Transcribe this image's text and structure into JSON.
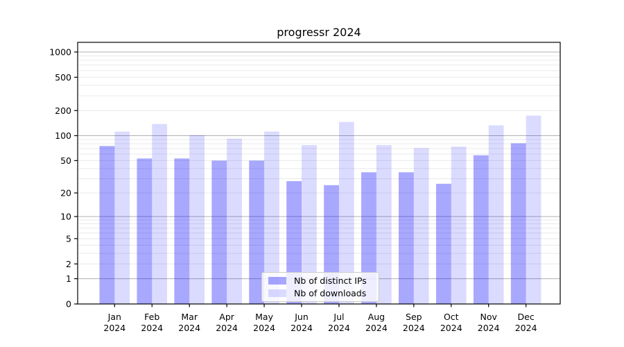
{
  "chart_data": {
    "type": "bar",
    "title": "progressr 2024",
    "categories": [
      "Jan",
      "Feb",
      "Mar",
      "Apr",
      "May",
      "Jun",
      "Jul",
      "Aug",
      "Sep",
      "Oct",
      "Nov",
      "Dec"
    ],
    "year": "2024",
    "series": [
      {
        "name": "Nb of distinct IPs",
        "color": "rgba(0,0,255,0.34)",
        "values": [
          75,
          53,
          53,
          50,
          50,
          28,
          25,
          36,
          36,
          26,
          58,
          81
        ]
      },
      {
        "name": "Nb of downloads",
        "color": "rgba(0,0,255,0.14)",
        "values": [
          112,
          138,
          102,
          92,
          112,
          77,
          146,
          77,
          71,
          74,
          133,
          174
        ]
      }
    ],
    "yscale": "log1p",
    "yticks": [
      0,
      1,
      2,
      5,
      10,
      20,
      50,
      100,
      200,
      500,
      1000
    ],
    "ylim": [
      0,
      1280
    ],
    "grid": "on",
    "legend_position": "lower center",
    "colors": {
      "grid_major": "#b0b0b0",
      "grid_minor": "#e9e9e9",
      "spine": "#000000",
      "legend_border": "#cccccc"
    }
  }
}
